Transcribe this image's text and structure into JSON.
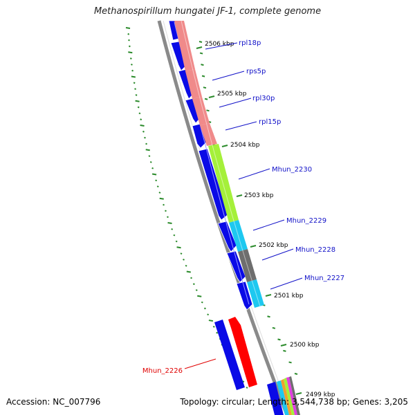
{
  "title": "Methanospirillum hungatei JF-1, complete genome",
  "footer": {
    "accession": "Accession: NC_007796",
    "summary": "Topology: circular; Length: 3,544,738 bp; Genes: 3,205"
  },
  "colors": {
    "forward_cds": "#0a0ae6",
    "reverse_cds": "#ff0000",
    "backbone": "#888888",
    "gc_ticks": "#2a8a2a",
    "label_blue": "#1010c8",
    "label_red": "#e00000"
  },
  "kbp_ticks": [
    {
      "label": "2506 kbp"
    },
    {
      "label": "2505 kbp"
    },
    {
      "label": "2504 kbp"
    },
    {
      "label": "2503 kbp"
    },
    {
      "label": "2502 kbp"
    },
    {
      "label": "2501 kbp"
    },
    {
      "label": "2500 kbp"
    },
    {
      "label": "2499 kbp"
    }
  ],
  "genes": [
    {
      "name": "rpl18p",
      "color": "#f08a8a"
    },
    {
      "name": "rps5p",
      "color": "#f08a8a"
    },
    {
      "name": "rpl30p",
      "color": "#f08a8a"
    },
    {
      "name": "rpl15p",
      "color": "#f08a8a"
    },
    {
      "name": "Mhun_2230",
      "color": "#a5f03a"
    },
    {
      "name": "Mhun_2229",
      "color": "#1ec8f0"
    },
    {
      "name": "Mhun_2228",
      "color": "#6e6e6e"
    },
    {
      "name": "Mhun_2227",
      "color": "#1ec8f0"
    },
    {
      "name": "Mhun_2226",
      "color": "#ff0000"
    }
  ]
}
